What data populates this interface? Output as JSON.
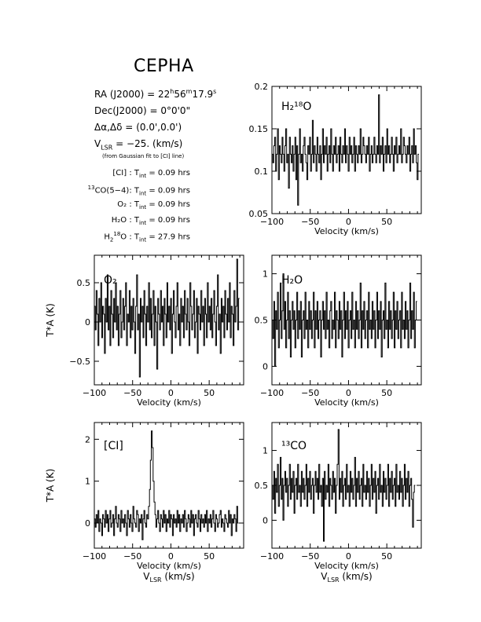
{
  "title": "CEPHA",
  "header": {
    "ra": {
      "label": "RA (J2000) =",
      "h": "22",
      "hsup": "h",
      "m": "56",
      "msup": "m",
      "s": "17.9",
      "ssup": "s"
    },
    "dec": {
      "label": "Dec(J2000) =",
      "value": "0°0'0\""
    },
    "offset": {
      "label": "Δα,Δδ =",
      "value": "(0.0',0.0')"
    },
    "vlsr": {
      "label_main": "V",
      "label_sub": "LSR",
      "value": "= −25. (km/s)"
    },
    "fit_note": "(from Gaussian fit to [CI] line)"
  },
  "integrations": [
    {
      "line": "[CI] :",
      "tint_main": "T",
      "tint_sub": "int",
      "value": "= 0.09 hrs"
    },
    {
      "line_sup": "13",
      "line": "CO(5−4):",
      "tint_main": "T",
      "tint_sub": "int",
      "value": "= 0.09 hrs"
    },
    {
      "line": "O₂ :",
      "tint_main": "T",
      "tint_sub": "int",
      "value": "= 0.09 hrs"
    },
    {
      "line": "H₂O :",
      "tint_main": "T",
      "tint_sub": "int",
      "value": "= 0.09 hrs"
    },
    {
      "line_pre": "H",
      "line_sub": "2",
      "line_sup": "18",
      "line": "O :",
      "tint_main": "T",
      "tint_sub": "int",
      "value": "= 27.9 hrs"
    }
  ],
  "chart_data": [
    {
      "type": "line",
      "id": "h218o",
      "label_html": "H₂¹⁸O",
      "xlabel": "Velocity (km/s)",
      "ylabel": "",
      "xlim": [
        -100,
        95
      ],
      "ylim": [
        0.05,
        0.2
      ],
      "xticks": [
        -100,
        -50,
        0,
        50
      ],
      "yticks": [
        0.05,
        0.1,
        0.15,
        0.2
      ],
      "ytick_labels": [
        "0.05",
        "0.1",
        "0.15",
        "0.2"
      ],
      "x_start": -100,
      "x_step": 1.2,
      "series": [
        {
          "values": [
            0.12,
            0.11,
            0.13,
            0.14,
            0.1,
            0.12,
            0.15,
            0.09,
            0.13,
            0.12,
            0.11,
            0.14,
            0.12,
            0.1,
            0.13,
            0.15,
            0.11,
            0.12,
            0.08,
            0.14,
            0.12,
            0.11,
            0.13,
            0.1,
            0.12,
            0.14,
            0.09,
            0.13,
            0.06,
            0.12,
            0.15,
            0.11,
            0.12,
            0.1,
            0.13,
            0.14,
            0.12,
            0.11,
            0.09,
            0.13,
            0.12,
            0.14,
            0.1,
            0.12,
            0.16,
            0.11,
            0.13,
            0.12,
            0.1,
            0.14,
            0.12,
            0.11,
            0.13,
            0.09,
            0.12,
            0.15,
            0.11,
            0.13,
            0.12,
            0.14,
            0.1,
            0.12,
            0.13,
            0.11,
            0.15,
            0.12,
            0.1,
            0.13,
            0.12,
            0.14,
            0.11,
            0.12,
            0.13,
            0.1,
            0.14,
            0.12,
            0.11,
            0.13,
            0.12,
            0.15,
            0.11,
            0.13,
            0.12,
            0.1,
            0.14,
            0.12,
            0.13,
            0.11,
            0.12,
            0.14,
            0.1,
            0.13,
            0.12,
            0.11,
            0.13,
            0.12,
            0.15,
            0.11,
            0.12,
            0.14,
            0.13,
            0.12,
            0.11,
            0.13,
            0.12,
            0.14,
            0.1,
            0.12,
            0.13,
            0.11,
            0.12,
            0.14,
            0.12,
            0.11,
            0.13,
            0.12,
            0.19,
            0.11,
            0.13,
            0.12,
            0.14,
            0.1,
            0.12,
            0.13,
            0.11,
            0.15,
            0.12,
            0.13,
            0.11,
            0.12,
            0.14,
            0.12,
            0.1,
            0.13,
            0.12,
            0.14,
            0.11,
            0.12,
            0.13,
            0.12,
            0.15,
            0.11,
            0.12,
            0.14,
            0.13,
            0.12,
            0.11,
            0.13,
            0.12,
            0.14,
            0.1,
            0.12,
            0.13,
            0.11,
            0.15,
            0.12,
            0.13,
            0.11,
            0.09,
            0.12
          ]
        }
      ]
    },
    {
      "type": "line",
      "id": "o2",
      "label_html": "O₂",
      "xlabel": "Velocity (km/s)",
      "ylabel": "T*A (K)",
      "xlim": [
        -100,
        95
      ],
      "ylim": [
        -0.8,
        0.85
      ],
      "xticks": [
        -100,
        -50,
        0,
        50
      ],
      "yticks": [
        -0.5,
        0,
        0.5
      ],
      "ytick_labels": [
        "−0.5",
        "0",
        "0.5"
      ],
      "x_start": -100,
      "x_step": 1.2,
      "series": [
        {
          "values": [
            0.2,
            -0.1,
            0.4,
            0.1,
            -0.3,
            0.3,
            0.0,
            0.5,
            -0.2,
            0.2,
            0.1,
            -0.4,
            0.3,
            0.0,
            0.6,
            -0.1,
            0.2,
            -0.3,
            0.4,
            0.1,
            -0.2,
            0.3,
            0.0,
            0.5,
            -0.1,
            0.2,
            -0.3,
            0.1,
            0.4,
            -0.2,
            0.0,
            0.3,
            -0.1,
            0.2,
            0.5,
            -0.3,
            0.1,
            0.0,
            0.4,
            -0.2,
            0.2,
            -0.1,
            0.3,
            0.0,
            -0.4,
            0.2,
            0.6,
            -0.1,
            0.1,
            -0.7,
            0.3,
            0.0,
            0.2,
            -0.2,
            0.4,
            0.1,
            -0.3,
            0.2,
            0.0,
            0.5,
            -0.1,
            0.3,
            -0.2,
            0.1,
            0.4,
            -0.3,
            0.2,
            0.0,
            -0.6,
            0.3,
            0.1,
            -0.1,
            0.4,
            0.0,
            0.2,
            -0.3,
            0.3,
            0.1,
            -0.2,
            0.5,
            0.0,
            0.2,
            -0.1,
            0.3,
            -0.4,
            0.1,
            0.4,
            0.0,
            -0.2,
            0.2,
            0.5,
            -0.1,
            0.1,
            -0.3,
            0.3,
            0.0,
            0.2,
            -0.2,
            0.4,
            0.1,
            -0.1,
            0.3,
            0.0,
            -0.3,
            0.5,
            0.2,
            -0.1,
            0.1,
            0.4,
            -0.2,
            0.0,
            0.3,
            -0.4,
            0.2,
            0.1,
            -0.1,
            0.4,
            0.0,
            0.2,
            -0.3,
            0.3,
            0.1,
            -0.2,
            0.5,
            0.0,
            0.2,
            -0.1,
            0.3,
            -0.2,
            0.1,
            0.4,
            0.0,
            -0.3,
            0.2,
            0.6,
            -0.1,
            0.1,
            -0.4,
            0.3,
            0.0,
            0.2,
            -0.2,
            0.4,
            0.1,
            -0.1,
            0.3,
            0.0,
            0.5,
            -0.2,
            0.2,
            0.1,
            -0.3,
            0.4,
            0.0,
            0.2,
            0.8,
            -0.1,
            0.3
          ]
        }
      ]
    },
    {
      "type": "line",
      "id": "h2o",
      "label_html": "H₂O",
      "xlabel": "Velocity (km/s)",
      "ylabel": "",
      "xlim": [
        -100,
        95
      ],
      "ylim": [
        -0.2,
        1.2
      ],
      "xticks": [
        -100,
        -50,
        0,
        50
      ],
      "yticks": [
        0,
        0.5,
        1
      ],
      "ytick_labels": [
        "0",
        "0.5",
        "1"
      ],
      "x_start": -100,
      "x_step": 1.2,
      "series": [
        {
          "values": [
            0.5,
            0.3,
            0.7,
            0.0,
            0.6,
            0.4,
            0.8,
            0.2,
            0.5,
            0.9,
            0.3,
            0.6,
            1.0,
            0.4,
            0.7,
            0.2,
            0.5,
            0.8,
            0.3,
            0.6,
            0.1,
            0.5,
            0.7,
            0.4,
            0.6,
            0.2,
            0.5,
            0.8,
            0.3,
            0.6,
            0.4,
            0.7,
            0.1,
            0.5,
            0.6,
            0.3,
            0.8,
            0.4,
            0.5,
            0.2,
            0.7,
            0.4,
            0.6,
            0.3,
            0.5,
            0.8,
            0.2,
            0.6,
            0.4,
            0.7,
            0.3,
            0.5,
            0.6,
            0.1,
            0.5,
            0.7,
            0.4,
            0.6,
            0.3,
            0.8,
            0.4,
            0.5,
            0.2,
            0.6,
            0.7,
            0.3,
            0.5,
            0.4,
            0.8,
            0.2,
            0.6,
            0.5,
            0.3,
            0.7,
            0.4,
            0.6,
            0.1,
            0.5,
            0.8,
            0.3,
            0.6,
            0.4,
            0.7,
            0.2,
            0.5,
            0.6,
            0.3,
            0.8,
            0.4,
            0.5,
            0.2,
            0.7,
            0.4,
            0.6,
            0.3,
            0.5,
            0.9,
            0.2,
            0.6,
            0.4,
            0.7,
            0.3,
            0.5,
            0.6,
            0.2,
            0.8,
            0.4,
            0.5,
            0.3,
            0.7,
            0.4,
            0.6,
            0.2,
            0.5,
            0.8,
            0.3,
            0.6,
            0.4,
            0.7,
            0.1,
            0.5,
            0.6,
            0.3,
            0.9,
            0.4,
            0.5,
            0.2,
            0.7,
            0.4,
            0.6,
            0.3,
            0.5,
            0.8,
            0.2,
            0.6,
            0.4,
            0.7,
            0.3,
            0.5,
            0.6,
            0.2,
            0.8,
            0.4,
            0.5,
            0.3,
            0.7,
            0.4,
            0.6,
            0.2,
            0.5,
            0.9,
            0.3,
            0.6,
            0.4,
            0.8,
            0.2,
            0.5,
            0.7
          ]
        }
      ]
    },
    {
      "type": "line",
      "id": "ci",
      "label_html": "[CI]",
      "xlabel": "Velocity (km/s)",
      "xlabel2_main": "V",
      "xlabel2_sub": "LSR",
      "xlabel2_rest": " (km/s)",
      "ylabel": "T*A (K)",
      "xlim": [
        -100,
        95
      ],
      "ylim": [
        -0.6,
        2.4
      ],
      "xticks": [
        -100,
        -50,
        0,
        50
      ],
      "yticks": [
        0,
        1,
        2
      ],
      "ytick_labels": [
        "0",
        "1",
        "2"
      ],
      "x_start": -100,
      "x_step": 1.2,
      "series": [
        {
          "values": [
            0.1,
            -0.1,
            0.2,
            0.0,
            0.3,
            -0.2,
            0.1,
            0.0,
            -0.3,
            0.2,
            0.1,
            -0.1,
            0.3,
            0.0,
            0.2,
            -0.2,
            0.1,
            0.3,
            -0.1,
            0.0,
            0.2,
            -0.3,
            0.1,
            0.4,
            0.0,
            -0.1,
            0.2,
            0.1,
            -0.2,
            0.3,
            0.0,
            0.1,
            -0.1,
            0.2,
            0.0,
            -0.3,
            0.3,
            0.1,
            -0.1,
            0.2,
            0.0,
            -0.2,
            0.4,
            0.1,
            0.0,
            -0.1,
            0.3,
            0.2,
            -0.2,
            0.1,
            0.0,
            0.2,
            -0.4,
            0.1,
            0.3,
            0.0,
            -0.1,
            0.2,
            0.1,
            0.4,
            0.8,
            1.5,
            2.2,
            1.8,
            1.0,
            0.5,
            0.2,
            -0.1,
            0.1,
            0.3,
            0.0,
            -0.2,
            0.2,
            0.1,
            -0.1,
            0.3,
            0.0,
            0.2,
            -0.2,
            0.1,
            0.0,
            0.3,
            -0.1,
            0.2,
            0.1,
            -0.3,
            0.2,
            0.0,
            0.1,
            -0.1,
            0.3,
            0.0,
            0.2,
            -0.2,
            0.1,
            0.0,
            0.2,
            -0.1,
            0.3,
            0.1,
            -0.2,
            0.0,
            0.2,
            0.1,
            -0.1,
            0.3,
            0.0,
            0.2,
            -0.3,
            0.1,
            0.2,
            0.0,
            -0.1,
            0.3,
            0.1,
            -0.2,
            0.2,
            0.0,
            0.1,
            -0.1,
            0.2,
            0.0,
            0.3,
            -0.2,
            0.1,
            0.0,
            0.2,
            -0.1,
            0.1,
            0.3,
            0.0,
            -0.2,
            0.2,
            0.1,
            -0.1,
            0.0,
            0.2,
            0.3,
            -0.1,
            0.1,
            0.0,
            -0.2,
            0.2,
            0.1,
            0.0,
            -0.1,
            0.3,
            0.0,
            0.2,
            -0.3,
            0.1,
            0.0,
            0.2,
            0.1,
            -0.2,
            0.4,
            0.0
          ]
        }
      ]
    },
    {
      "type": "line",
      "id": "13co",
      "label_html": "¹³CO",
      "xlabel": "Velocity (km/s)",
      "xlabel2_main": "V",
      "xlabel2_sub": "LSR",
      "xlabel2_rest": " (km/s)",
      "ylabel": "",
      "xlim": [
        -100,
        95
      ],
      "ylim": [
        -0.4,
        1.4
      ],
      "xticks": [
        -100,
        -50,
        0,
        50
      ],
      "yticks": [
        0,
        0.5,
        1
      ],
      "ytick_labels": [
        "0",
        "0.5",
        "1"
      ],
      "x_start": -100,
      "x_step": 1.2,
      "series": [
        {
          "values": [
            0.5,
            0.3,
            0.7,
            0.1,
            0.6,
            0.4,
            0.8,
            0.2,
            0.5,
            0.9,
            0.3,
            0.6,
            0.0,
            0.5,
            0.7,
            0.4,
            0.6,
            0.2,
            0.5,
            0.8,
            0.3,
            0.6,
            0.4,
            0.7,
            0.1,
            0.5,
            0.6,
            0.3,
            0.8,
            0.4,
            0.5,
            0.2,
            0.7,
            0.4,
            0.6,
            0.3,
            0.5,
            0.8,
            0.2,
            0.6,
            0.4,
            0.7,
            0.3,
            0.5,
            0.6,
            0.1,
            0.5,
            0.7,
            0.4,
            0.6,
            0.3,
            0.8,
            0.4,
            0.5,
            0.2,
            0.6,
            -0.3,
            0.7,
            0.3,
            0.5,
            0.4,
            0.8,
            0.2,
            0.6,
            0.5,
            0.3,
            0.7,
            0.4,
            0.6,
            0.1,
            0.5,
            0.8,
            1.3,
            0.3,
            0.6,
            0.4,
            0.7,
            0.2,
            0.5,
            0.6,
            0.3,
            0.8,
            0.4,
            0.5,
            0.2,
            0.7,
            0.4,
            0.6,
            0.3,
            0.5,
            0.9,
            0.2,
            0.6,
            0.4,
            0.7,
            0.3,
            0.5,
            0.6,
            0.2,
            0.8,
            0.4,
            0.5,
            0.3,
            0.7,
            0.4,
            0.6,
            0.2,
            0.5,
            0.8,
            0.3,
            0.6,
            0.4,
            0.7,
            0.1,
            0.5,
            0.6,
            0.3,
            0.8,
            0.4,
            0.5,
            0.2,
            0.7,
            0.4,
            0.6,
            0.3,
            0.5,
            0.8,
            0.2,
            0.6,
            0.4,
            0.7,
            0.3,
            0.5,
            0.6,
            0.2,
            0.8,
            0.4,
            0.5,
            0.3,
            0.7,
            0.4,
            0.6,
            0.2,
            0.5,
            0.8,
            0.3,
            0.6,
            0.4,
            0.7,
            0.2,
            0.5,
            0.6,
            0.3,
            -0.1,
            0.4,
            0.5
          ]
        }
      ]
    }
  ]
}
